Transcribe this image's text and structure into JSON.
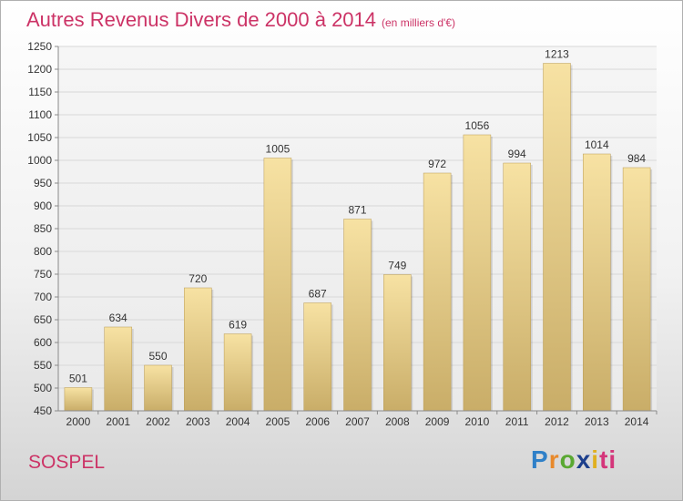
{
  "chart_data": {
    "type": "bar",
    "title": "Autres Revenus Divers de 2000 à 2014",
    "subtitle": "(en milliers d'€)",
    "categories": [
      "2000",
      "2001",
      "2002",
      "2003",
      "2004",
      "2005",
      "2006",
      "2007",
      "2008",
      "2009",
      "2010",
      "2011",
      "2012",
      "2013",
      "2014"
    ],
    "values": [
      501,
      634,
      550,
      720,
      619,
      1005,
      687,
      871,
      749,
      972,
      1056,
      994,
      1213,
      1014,
      984
    ],
    "ylim": [
      450,
      1250
    ],
    "yticks": [
      450,
      500,
      550,
      600,
      650,
      700,
      750,
      800,
      850,
      900,
      950,
      1000,
      1050,
      1100,
      1150,
      1200,
      1250
    ],
    "grid": true,
    "legend": "none",
    "colors": {
      "bar_light": "#f7e2a3",
      "bar_dark": "#c9ad68",
      "grid": "#d8d8d8",
      "axis": "#8a8a8a"
    }
  },
  "place_label": "SOSPEL",
  "logo": {
    "text": "Proxiti",
    "letters": [
      "P",
      "r",
      "o",
      "x",
      "i",
      "ti"
    ]
  }
}
